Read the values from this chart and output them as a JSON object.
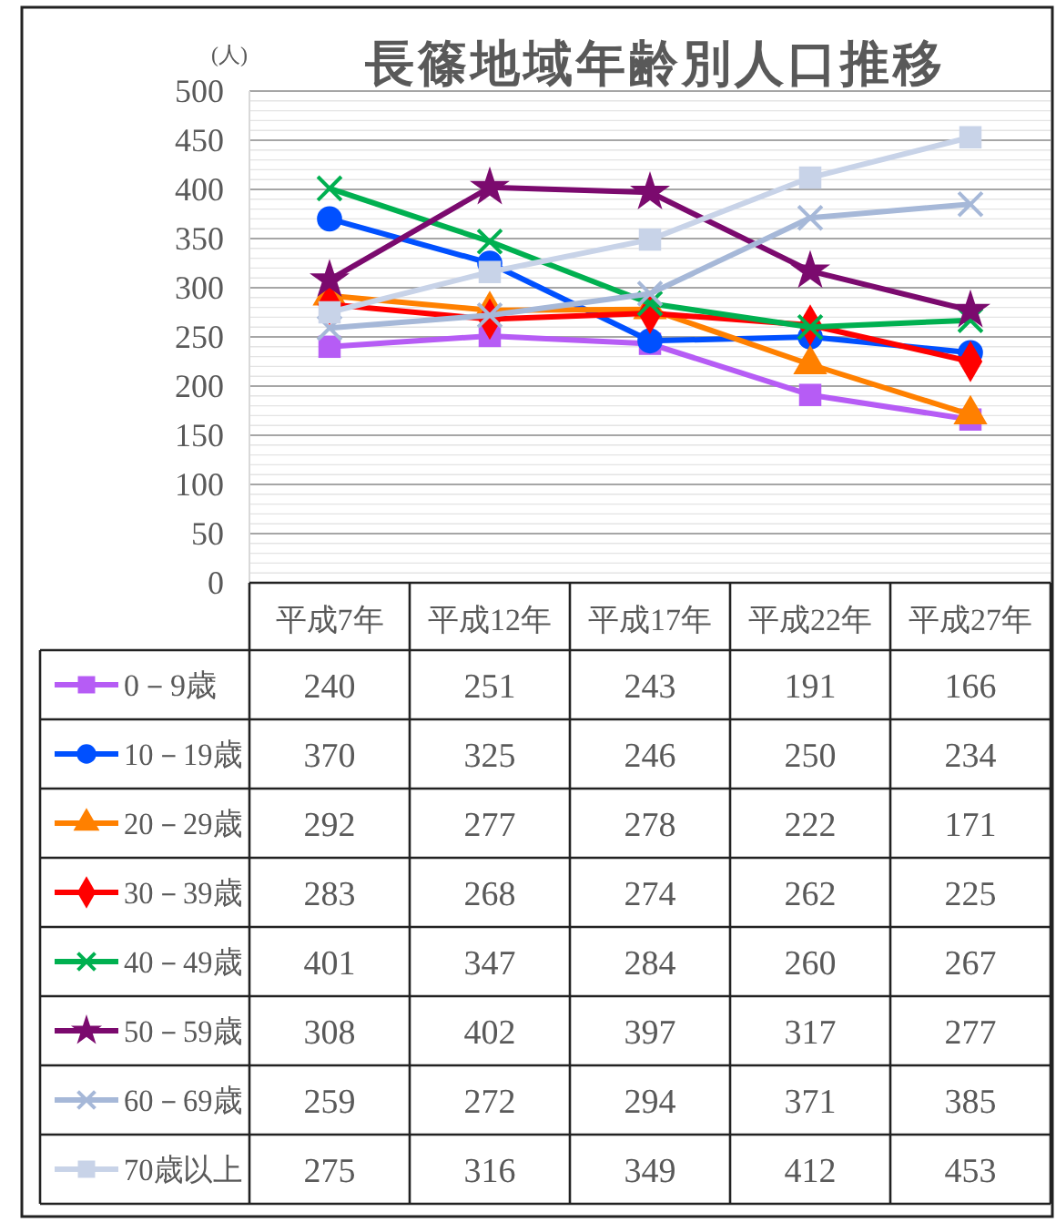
{
  "chart_data": {
    "type": "line",
    "title": "長篠地域年齢別人口推移",
    "ylabel": "(人)",
    "categories": [
      "平成7年",
      "平成12年",
      "平成17年",
      "平成22年",
      "平成27年"
    ],
    "ylim": [
      0,
      500
    ],
    "yticks": [
      0,
      50,
      100,
      150,
      200,
      250,
      300,
      350,
      400,
      450,
      500
    ],
    "grid": "y",
    "legend": "bottom",
    "data_labels": true,
    "line_style": "solid",
    "series": [
      {
        "name": "0－9歳",
        "color": "#b65cf5",
        "marker": "square",
        "values": [
          240,
          251,
          243,
          191,
          166
        ]
      },
      {
        "name": "10－19歳",
        "color": "#0050ff",
        "marker": "circle",
        "values": [
          370,
          325,
          246,
          250,
          234
        ]
      },
      {
        "name": "20－29歳",
        "color": "#ff8000",
        "marker": "triangle",
        "values": [
          292,
          277,
          278,
          222,
          171
        ]
      },
      {
        "name": "30－39歳",
        "color": "#ff0000",
        "marker": "diamond",
        "values": [
          283,
          268,
          274,
          262,
          225
        ]
      },
      {
        "name": "40－49歳",
        "color": "#00b050",
        "marker": "cross",
        "values": [
          401,
          347,
          284,
          260,
          267
        ]
      },
      {
        "name": "50－59歳",
        "color": "#7b0a6e",
        "marker": "star",
        "values": [
          308,
          402,
          397,
          317,
          277
        ]
      },
      {
        "name": "60－69歳",
        "color": "#a6b8d8",
        "marker": "cross",
        "values": [
          259,
          272,
          294,
          371,
          385
        ]
      },
      {
        "name": "70歳以上",
        "color": "#c8d3e8",
        "marker": "square",
        "values": [
          275,
          316,
          349,
          412,
          453
        ]
      }
    ]
  }
}
